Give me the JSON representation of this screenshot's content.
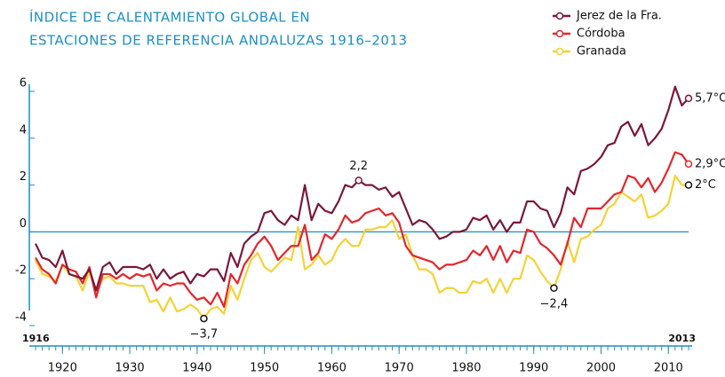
{
  "chart_data": {
    "type": "line",
    "title": [
      "ÍNDICE DE CALENTAMIENTO GLOBAL EN",
      "ESTACIONES DE REFERENCIA ANDALUZAS 1916–2013"
    ],
    "x": [
      1916,
      1917,
      1918,
      1919,
      1920,
      1921,
      1922,
      1923,
      1924,
      1925,
      1926,
      1927,
      1928,
      1929,
      1930,
      1931,
      1932,
      1933,
      1934,
      1935,
      1936,
      1937,
      1938,
      1939,
      1940,
      1941,
      1942,
      1943,
      1944,
      1945,
      1946,
      1947,
      1948,
      1949,
      1950,
      1951,
      1952,
      1953,
      1954,
      1955,
      1956,
      1957,
      1958,
      1959,
      1960,
      1961,
      1962,
      1963,
      1964,
      1965,
      1966,
      1967,
      1968,
      1969,
      1970,
      1971,
      1972,
      1973,
      1974,
      1975,
      1976,
      1977,
      1978,
      1979,
      1980,
      1981,
      1982,
      1983,
      1984,
      1985,
      1986,
      1987,
      1988,
      1989,
      1990,
      1991,
      1992,
      1993,
      1994,
      1995,
      1996,
      1997,
      1998,
      1999,
      2000,
      2001,
      2002,
      2003,
      2004,
      2005,
      2006,
      2007,
      2008,
      2009,
      2010,
      2011,
      2012,
      2013
    ],
    "series": [
      {
        "name": "Jerez de la Fra.",
        "color": "#7a1838",
        "values": [
          -0.5,
          -1.1,
          -1.2,
          -1.5,
          -0.8,
          -1.8,
          -1.9,
          -2.0,
          -1.6,
          -2.5,
          -1.5,
          -1.3,
          -1.8,
          -1.5,
          -1.5,
          -1.5,
          -1.6,
          -1.4,
          -2.0,
          -1.6,
          -2.0,
          -1.8,
          -1.7,
          -2.2,
          -1.8,
          -1.9,
          -1.6,
          -1.6,
          -2.1,
          -0.9,
          -1.5,
          -0.5,
          -0.2,
          0.0,
          0.8,
          0.9,
          0.5,
          0.3,
          0.7,
          0.5,
          2.0,
          0.5,
          1.2,
          0.9,
          0.8,
          1.3,
          2.0,
          1.9,
          2.2,
          2.0,
          2.0,
          1.8,
          1.9,
          1.5,
          1.7,
          1.0,
          0.3,
          0.5,
          0.4,
          0.1,
          -0.3,
          -0.2,
          0.0,
          0.0,
          0.1,
          0.6,
          0.5,
          0.7,
          0.1,
          0.5,
          0.0,
          0.4,
          0.4,
          1.3,
          1.3,
          1.0,
          0.9,
          0.2,
          0.8,
          1.9,
          1.6,
          2.6,
          2.7,
          2.9,
          3.2,
          3.7,
          3.8,
          4.5,
          4.7,
          4.1,
          4.6,
          3.7,
          4.0,
          4.4,
          5.2,
          6.2,
          5.4,
          5.7
        ]
      },
      {
        "name": "Córdoba",
        "color": "#e3262c",
        "values": [
          -1.1,
          -1.6,
          -1.8,
          -2.2,
          -1.4,
          -1.6,
          -1.7,
          -2.2,
          -1.5,
          -2.8,
          -1.8,
          -1.8,
          -2.0,
          -1.8,
          -2.0,
          -1.8,
          -1.9,
          -1.8,
          -2.5,
          -2.2,
          -2.3,
          -2.2,
          -2.2,
          -2.6,
          -2.9,
          -2.8,
          -3.1,
          -2.6,
          -3.2,
          -1.8,
          -2.2,
          -1.4,
          -1.0,
          -0.5,
          -0.2,
          -0.6,
          -1.2,
          -0.9,
          -0.6,
          -0.6,
          0.3,
          -1.2,
          -0.9,
          -0.1,
          -0.3,
          0.1,
          0.7,
          0.4,
          0.5,
          0.8,
          0.9,
          1.0,
          0.7,
          0.8,
          0.4,
          -0.6,
          -1.0,
          -1.1,
          -1.2,
          -1.3,
          -1.6,
          -1.4,
          -1.4,
          -1.3,
          -1.2,
          -0.8,
          -1.0,
          -0.6,
          -1.2,
          -0.6,
          -1.3,
          -0.8,
          -0.9,
          0.1,
          0.0,
          -0.5,
          -0.7,
          -1.0,
          -1.4,
          -0.5,
          0.6,
          0.2,
          1.0,
          1.0,
          1.0,
          1.3,
          1.6,
          1.7,
          2.4,
          2.3,
          1.9,
          2.3,
          1.7,
          2.1,
          2.7,
          3.4,
          3.3,
          2.9
        ]
      },
      {
        "name": "Granada",
        "color": "#f5d236",
        "values": [
          -1.2,
          -1.8,
          -1.9,
          -2.1,
          -1.4,
          -1.8,
          -1.9,
          -2.5,
          -1.7,
          -2.6,
          -2.0,
          -1.9,
          -2.2,
          -2.2,
          -2.3,
          -2.3,
          -2.3,
          -3.0,
          -2.9,
          -3.4,
          -2.8,
          -3.4,
          -3.3,
          -3.1,
          -3.3,
          -3.7,
          -3.3,
          -3.2,
          -3.5,
          -2.3,
          -2.9,
          -2.0,
          -1.2,
          -0.9,
          -1.5,
          -1.7,
          -1.4,
          -1.1,
          -1.2,
          0.2,
          -1.6,
          -1.4,
          -1.0,
          -1.4,
          -1.2,
          -0.6,
          -0.3,
          -0.6,
          -0.6,
          0.1,
          0.1,
          0.2,
          0.2,
          0.5,
          -0.3,
          -0.1,
          -1.0,
          -1.6,
          -1.6,
          -1.8,
          -2.6,
          -2.4,
          -2.4,
          -2.6,
          -2.6,
          -2.1,
          -2.2,
          -2.0,
          -2.6,
          -2.0,
          -2.6,
          -2.0,
          -2.0,
          -1.0,
          -1.2,
          -1.7,
          -2.1,
          -2.4,
          -1.6,
          -0.4,
          -1.3,
          -0.3,
          -0.2,
          0.1,
          0.3,
          1.0,
          1.2,
          1.7,
          1.5,
          1.3,
          1.6,
          0.6,
          0.7,
          0.9,
          1.2,
          2.4,
          2.0,
          2.0
        ]
      }
    ],
    "annotations": [
      {
        "x": 1964,
        "y": 2.2,
        "label": "2,2",
        "color": "#7a1838"
      },
      {
        "x": 1941,
        "y": -3.7,
        "label": "−3,7",
        "color": "#111111"
      },
      {
        "x": 1993,
        "y": -2.4,
        "label": "−2,4",
        "color": "#111111"
      },
      {
        "x": 2013,
        "y": 5.7,
        "label": "5,7°C",
        "color": "#7a1838"
      },
      {
        "x": 2013,
        "y": 2.9,
        "label": "2,9°C",
        "color": "#e3262c"
      },
      {
        "x": 2013,
        "y": 2,
        "label": "2°C",
        "color": "#111111"
      }
    ],
    "xlim": [
      1916,
      2013
    ],
    "xticks": [
      1920,
      1930,
      1940,
      1950,
      1960,
      1970,
      1980,
      1990,
      2000,
      2010
    ],
    "ylim": [
      -4.2,
      6.3
    ],
    "yticks": [
      6,
      4,
      2,
      0,
      -2,
      -4
    ],
    "zero_line": true,
    "axis_color": "#1a8fc9",
    "legend": "top-right"
  }
}
